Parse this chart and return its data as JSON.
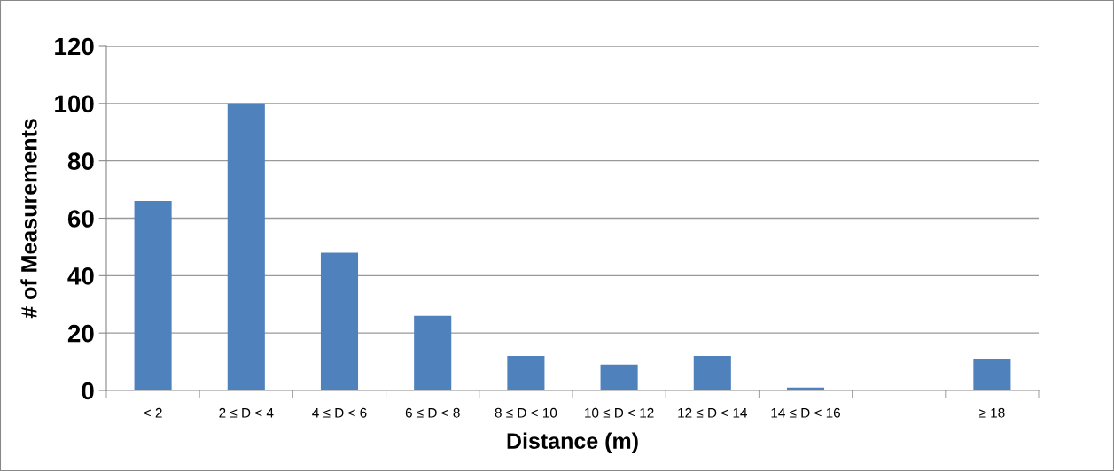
{
  "chart_data": {
    "type": "bar",
    "xlabel": "Distance (m)",
    "ylabel": "# of Measurements",
    "categories": [
      "< 2",
      "2 ≤ D < 4",
      "4 ≤ D < 6",
      "6 ≤ D < 8",
      "8 ≤ D < 10",
      "10 ≤ D < 12",
      "12 ≤ D < 14",
      "14 ≤ D < 16",
      null,
      "≥ 18"
    ],
    "values": [
      66,
      100,
      48,
      26,
      12,
      9,
      12,
      1,
      0,
      11
    ],
    "color": "#4f81bd",
    "ylim": [
      0,
      120
    ],
    "yticks": [
      0,
      20,
      40,
      60,
      80,
      100,
      120
    ],
    "grid": "y",
    "legend": false
  }
}
